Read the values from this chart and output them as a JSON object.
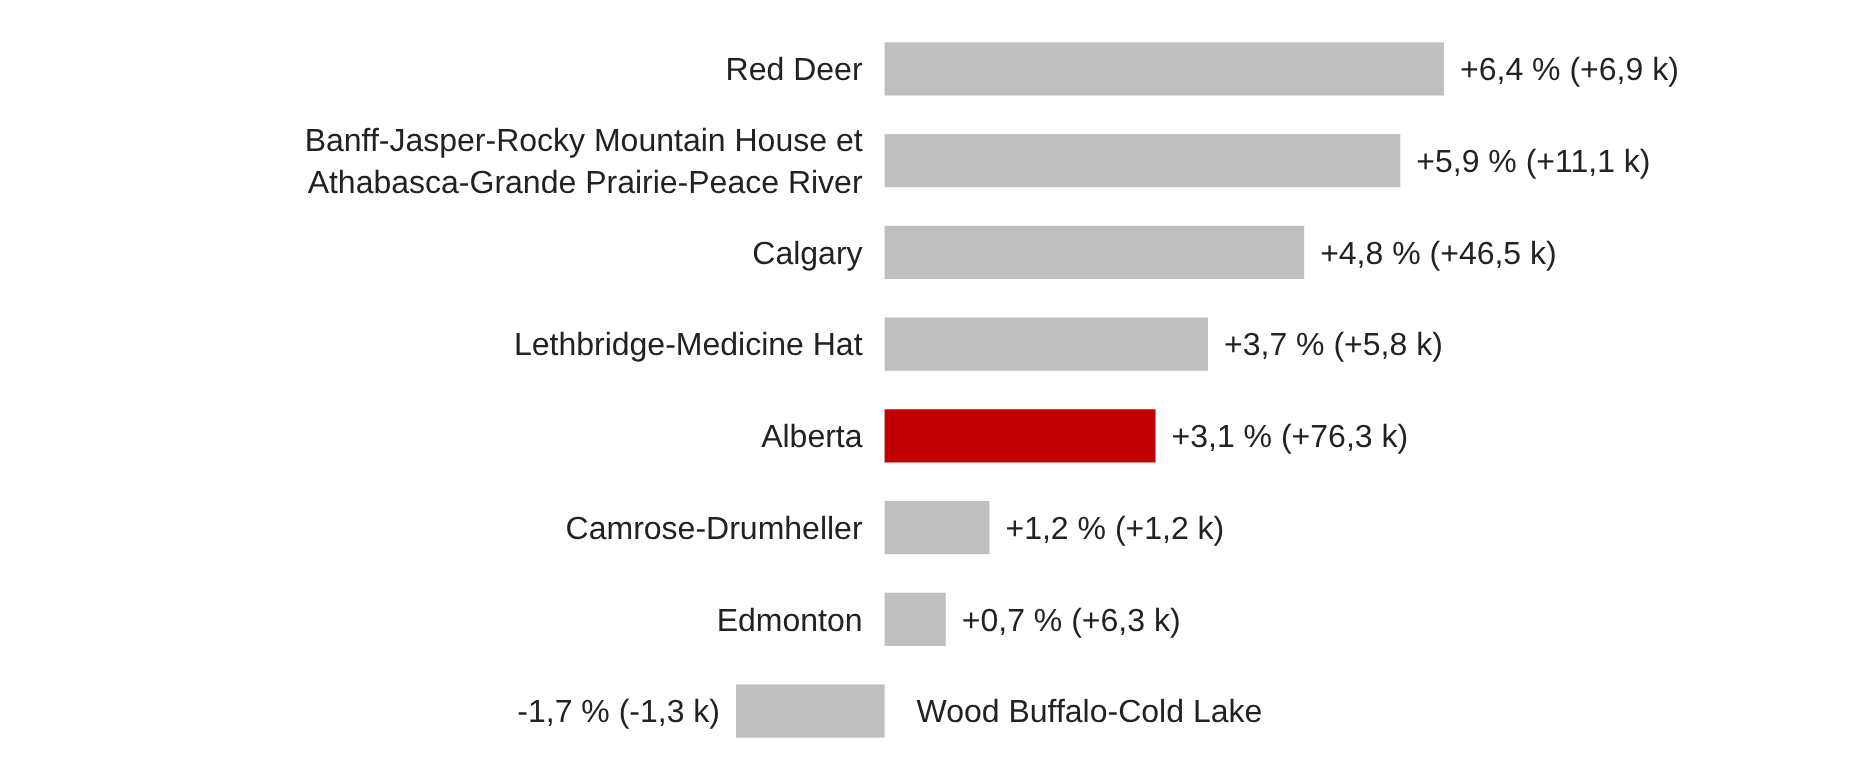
{
  "chart_data": {
    "type": "bar",
    "orientation": "horizontal",
    "categories": [
      "Red Deer",
      "Banff-Jasper-Rocky Mountain House et Athabasca-Grande Prairie-Peace River",
      "Calgary",
      "Lethbridge-Medicine Hat",
      "Alberta",
      "Camrose-Drumheller",
      "Edmonton",
      "Wood Buffalo-Cold Lake"
    ],
    "values": [
      6.4,
      5.9,
      4.8,
      3.7,
      3.1,
      1.2,
      0.7,
      -1.7
    ],
    "colors": [
      "#bfbfbf",
      "#bfbfbf",
      "#bfbfbf",
      "#bfbfbf",
      "#c00000",
      "#bfbfbf",
      "#bfbfbf",
      "#bfbfbf"
    ],
    "value_labels": [
      "+6,4 % (+6,9 k)",
      "+5,9 % (+11,1 k)",
      "+4,8 % (+46,5 k)",
      "+3,7 % (+5,8 k)",
      "+3,1 % (+76,3 k)",
      "+1,2 % (+1,2 k)",
      "+0,7 % (+6,3 k)",
      "-1,7 % (-1,3 k)"
    ]
  }
}
